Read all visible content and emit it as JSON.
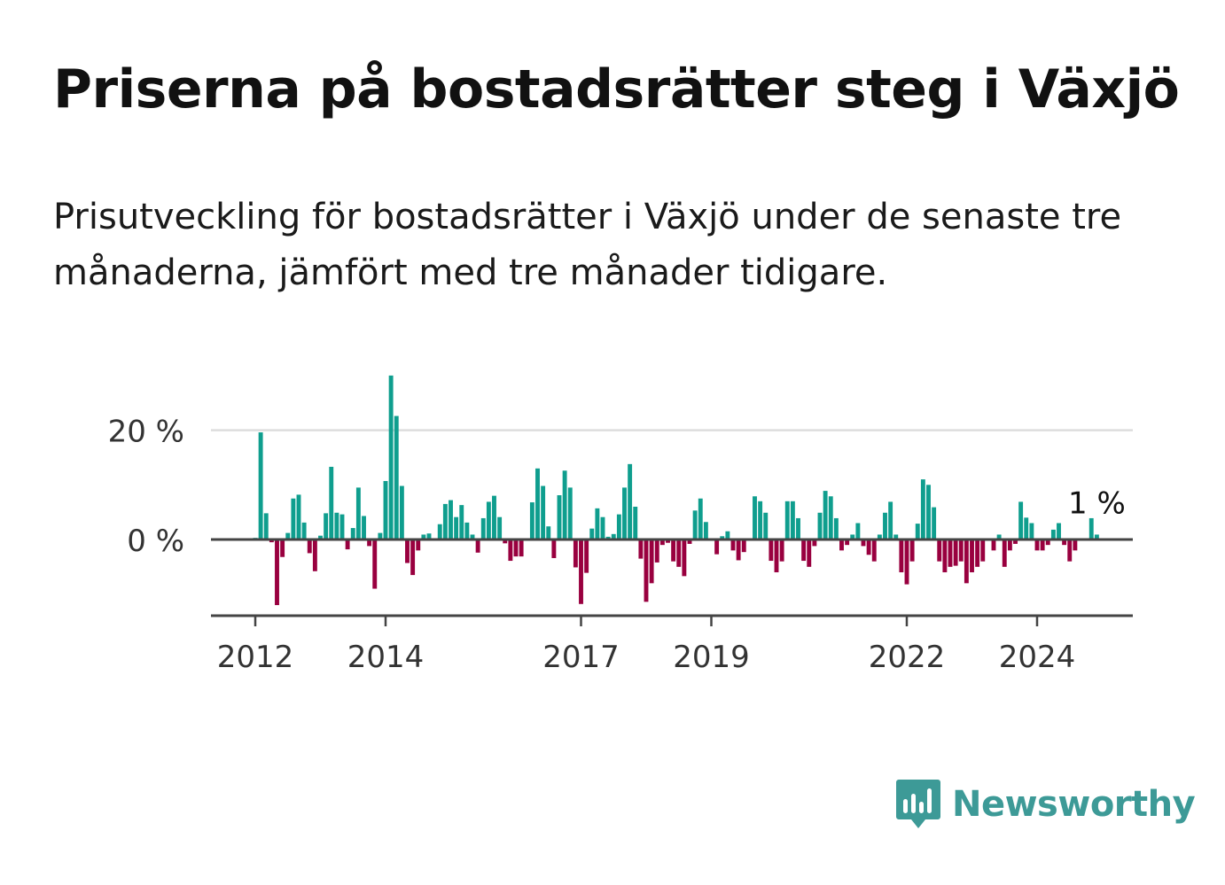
{
  "title": "Priserna på bostadsrätter steg i Växjö",
  "subtitle": "Prisutveckling för bostadsrätter i Växjö under de senaste tre månaderna, jämfört med tre månader tidigare.",
  "brand": {
    "name": "Newsworthy",
    "color": "#3d9a97"
  },
  "chart_data": {
    "type": "bar",
    "title": "",
    "xlabel": "",
    "ylabel": "",
    "ylim": [
      -14,
      30
    ],
    "yticks": [
      {
        "value": 20,
        "label": "20 %"
      },
      {
        "value": 0,
        "label": "0 %"
      }
    ],
    "x_start": "2012-01",
    "xticks": [
      {
        "label": "2012",
        "index": 0
      },
      {
        "label": "2014",
        "index": 24
      },
      {
        "label": "2017",
        "index": 60
      },
      {
        "label": "2019",
        "index": 84
      },
      {
        "label": "2022",
        "index": 120
      },
      {
        "label": "2024",
        "index": 144
      }
    ],
    "grid": true,
    "colors": {
      "positive": "#0f9e8e",
      "negative": "#99003f",
      "grid": "#dddddd",
      "axis": "#444444"
    },
    "last_label": "1 %",
    "values": [
      0.3,
      19.6,
      4.8,
      -0.5,
      -12.0,
      -3.2,
      1.2,
      7.5,
      8.2,
      3.1,
      -2.5,
      -5.8,
      0.7,
      4.8,
      13.3,
      4.9,
      4.6,
      -1.8,
      2.1,
      9.5,
      4.3,
      -1.2,
      -9.0,
      1.2,
      10.7,
      30.0,
      22.6,
      9.8,
      -4.3,
      -6.5,
      -2.0,
      0.9,
      1.1,
      0.2,
      2.8,
      6.5,
      7.2,
      4.1,
      6.3,
      3.1,
      0.9,
      -2.4,
      3.9,
      6.9,
      8.0,
      4.1,
      -0.7,
      -3.9,
      -3.1,
      -3.1,
      0.2,
      6.8,
      13.0,
      9.8,
      2.4,
      -3.4,
      8.1,
      12.6,
      9.5,
      -5.1,
      -11.8,
      -6.1,
      2.0,
      5.7,
      4.1,
      0.5,
      1.0,
      4.6,
      9.5,
      13.8,
      6.0,
      -3.5,
      -11.4,
      -8.0,
      -4.2,
      -1.0,
      -0.6,
      -4.0,
      -5.0,
      -6.7,
      -0.8,
      5.3,
      7.5,
      3.2,
      -0.2,
      -2.7,
      0.6,
      1.5,
      -2.0,
      -3.8,
      -2.3,
      0.2,
      7.9,
      7.0,
      4.9,
      -3.9,
      -6.0,
      -4.0,
      7.0,
      7.0,
      3.9,
      -3.9,
      -5.0,
      -1.2,
      4.9,
      8.9,
      7.9,
      3.9,
      -2.0,
      -1.0,
      0.9,
      3.0,
      -1.2,
      -2.8,
      -4.0,
      0.9,
      4.9,
      6.9,
      0.9,
      -6.0,
      -8.2,
      -4.0,
      2.9,
      11.0,
      10.0,
      5.9,
      -4.0,
      -6.0,
      -5.0,
      -4.8,
      -4.0,
      -8.0,
      -6.0,
      -5.0,
      -4.0,
      0.0,
      -2.0,
      0.9,
      -5.0,
      -2.0,
      -0.8,
      6.9,
      4.0,
      3.0,
      -2.0,
      -2.0,
      -1.0,
      1.8,
      3.0,
      -1.0,
      -4.0,
      -2.0,
      0.0,
      0.0,
      3.9,
      0.9
    ]
  }
}
